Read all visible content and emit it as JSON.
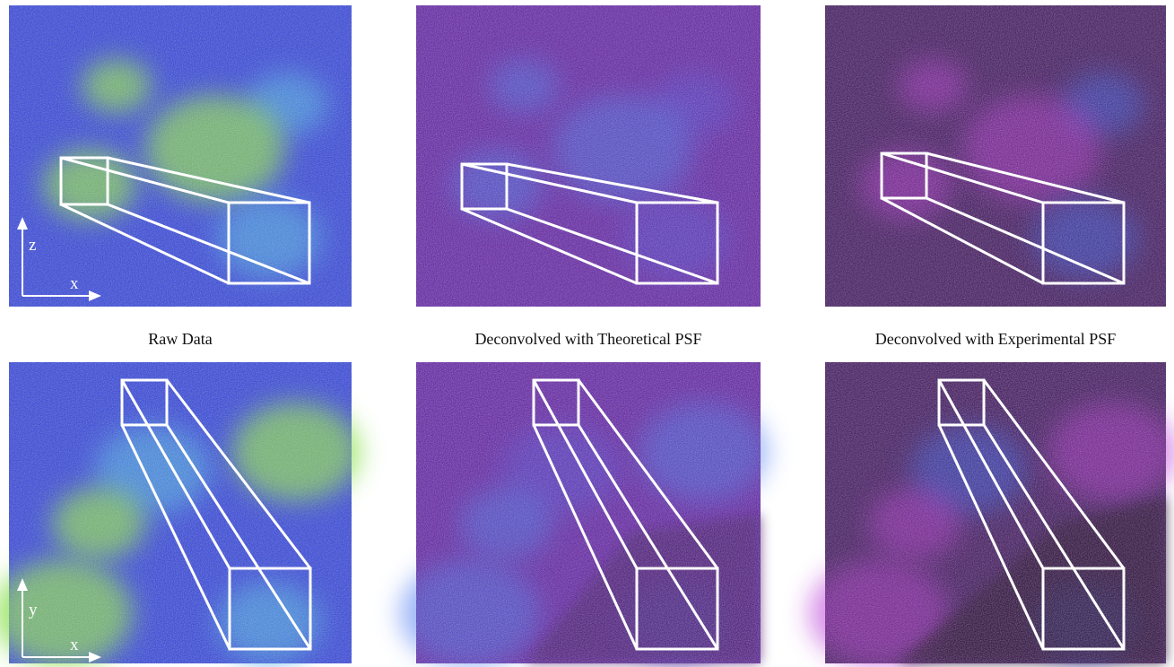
{
  "captions": [
    "Raw Data",
    "Deconvolved with Theoretical PSF",
    "Deconvolved with Experimental PSF"
  ],
  "axes": {
    "top": {
      "vertical": "z",
      "horizontal": "x"
    },
    "bottom": {
      "vertical": "y",
      "horizontal": "x"
    }
  }
}
